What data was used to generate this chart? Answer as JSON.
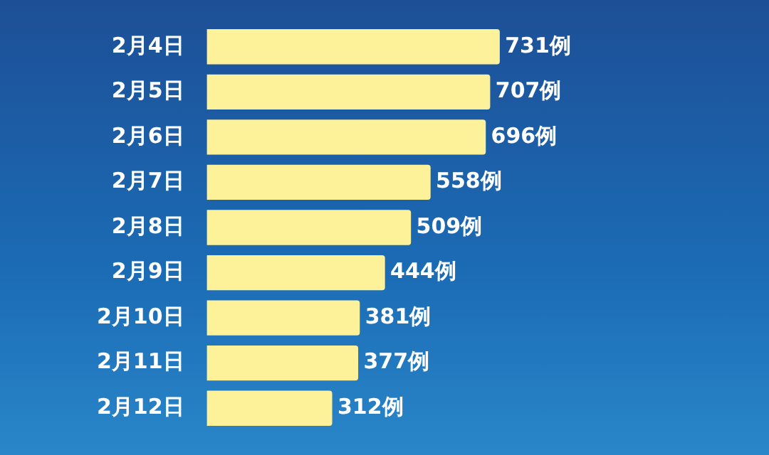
{
  "chart_data": {
    "type": "bar",
    "orientation": "horizontal",
    "categories": [
      "2月4日",
      "2月5日",
      "2月6日",
      "2月7日",
      "2月8日",
      "2月9日",
      "2月10日",
      "2月11日",
      "2月12日"
    ],
    "values": [
      731,
      707,
      696,
      558,
      509,
      444,
      381,
      377,
      312
    ],
    "value_labels": [
      "731例",
      "707例",
      "696例",
      "558例",
      "509例",
      "444例",
      "381例",
      "377例",
      "312例"
    ],
    "color": "#fdf19a",
    "legend": false
  }
}
